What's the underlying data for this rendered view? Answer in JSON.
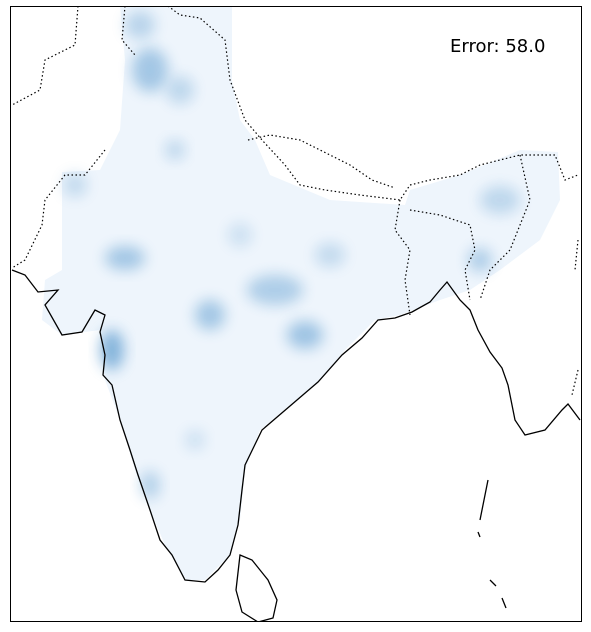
{
  "map": {
    "annotation": "Error: 58.0"
  }
}
